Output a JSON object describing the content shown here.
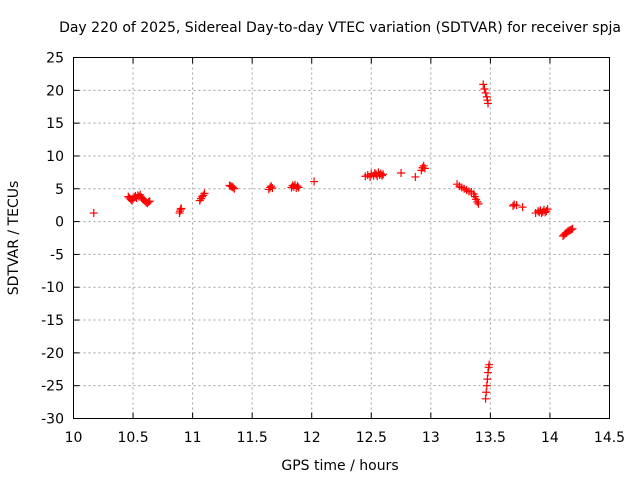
{
  "chart_data": {
    "type": "scatter",
    "title": "Day 220 of 2025, Sidereal Day-to-day VTEC variation (SDTVAR) for receiver spja",
    "xlabel": "GPS time / hours",
    "ylabel": "SDTVAR / TECUs",
    "xlim": [
      10,
      14.5
    ],
    "ylim": [
      -30,
      25
    ],
    "xticks": [
      10,
      10.5,
      11,
      11.5,
      12,
      12.5,
      13,
      13.5,
      14,
      14.5
    ],
    "xtick_labels": [
      "10",
      "10.5",
      "11",
      "11.5",
      "12",
      "12.5",
      "13",
      "13.5",
      "14",
      "14.5"
    ],
    "yticks": [
      25,
      20,
      15,
      10,
      5,
      0,
      -5,
      -10,
      -15,
      -20,
      -25,
      -30
    ],
    "ytick_labels": [
      "25",
      "20",
      "15",
      "10",
      "5",
      "0",
      "-5",
      "-10",
      "-15",
      "-20",
      "-25",
      "-30"
    ],
    "grid": true,
    "marker": "+",
    "color": "#ff0000",
    "series": [
      {
        "name": "SDTVAR",
        "points": [
          [
            10.17,
            1.3
          ],
          [
            10.46,
            3.8
          ],
          [
            10.47,
            3.6
          ],
          [
            10.48,
            3.4
          ],
          [
            10.49,
            3.2
          ],
          [
            10.5,
            3.5
          ],
          [
            10.51,
            3.7
          ],
          [
            10.52,
            3.9
          ],
          [
            10.53,
            3.6
          ],
          [
            10.54,
            4.0
          ],
          [
            10.55,
            3.8
          ],
          [
            10.56,
            4.1
          ],
          [
            10.57,
            3.7
          ],
          [
            10.58,
            3.5
          ],
          [
            10.59,
            3.3
          ],
          [
            10.6,
            3.1
          ],
          [
            10.61,
            2.9
          ],
          [
            10.62,
            2.8
          ],
          [
            10.63,
            3.0
          ],
          [
            10.64,
            3.1
          ],
          [
            10.89,
            1.3
          ],
          [
            10.895,
            1.6
          ],
          [
            10.9,
            1.9
          ],
          [
            10.905,
            2.0
          ],
          [
            11.06,
            3.2
          ],
          [
            11.07,
            3.5
          ],
          [
            11.08,
            3.8
          ],
          [
            11.09,
            4.0
          ],
          [
            11.1,
            4.3
          ],
          [
            11.31,
            5.5
          ],
          [
            11.32,
            5.4
          ],
          [
            11.33,
            5.3
          ],
          [
            11.34,
            5.2
          ],
          [
            11.35,
            5.0
          ],
          [
            11.64,
            4.9
          ],
          [
            11.65,
            5.2
          ],
          [
            11.66,
            5.4
          ],
          [
            11.67,
            5.1
          ],
          [
            11.83,
            5.2
          ],
          [
            11.84,
            5.5
          ],
          [
            11.85,
            5.3
          ],
          [
            11.86,
            5.6
          ],
          [
            11.87,
            5.1
          ],
          [
            11.88,
            5.4
          ],
          [
            11.89,
            5.2
          ],
          [
            12.02,
            6.1
          ],
          [
            12.45,
            6.9
          ],
          [
            12.47,
            7.1
          ],
          [
            12.49,
            6.8
          ],
          [
            12.5,
            7.3
          ],
          [
            12.52,
            7.0
          ],
          [
            12.53,
            7.4
          ],
          [
            12.54,
            7.2
          ],
          [
            12.55,
            6.9
          ],
          [
            12.56,
            7.5
          ],
          [
            12.57,
            7.1
          ],
          [
            12.58,
            7.3
          ],
          [
            12.59,
            7.0
          ],
          [
            12.6,
            7.2
          ],
          [
            12.75,
            7.4
          ],
          [
            12.87,
            6.8
          ],
          [
            12.92,
            7.8
          ],
          [
            12.93,
            8.2
          ],
          [
            12.94,
            8.5
          ],
          [
            12.95,
            8.1
          ],
          [
            13.22,
            5.7
          ],
          [
            13.24,
            5.4
          ],
          [
            13.26,
            5.2
          ],
          [
            13.28,
            5.0
          ],
          [
            13.3,
            4.8
          ],
          [
            13.32,
            4.6
          ],
          [
            13.34,
            4.5
          ],
          [
            13.36,
            4.2
          ],
          [
            13.37,
            3.8
          ],
          [
            13.38,
            3.4
          ],
          [
            13.39,
            3.0
          ],
          [
            13.4,
            2.7
          ],
          [
            13.44,
            20.9
          ],
          [
            13.45,
            20.2
          ],
          [
            13.46,
            19.6
          ],
          [
            13.47,
            19.0
          ],
          [
            13.475,
            18.5
          ],
          [
            13.48,
            18.0
          ],
          [
            13.46,
            -27.0
          ],
          [
            13.465,
            -26.0
          ],
          [
            13.47,
            -25.0
          ],
          [
            13.475,
            -24.0
          ],
          [
            13.48,
            -23.0
          ],
          [
            13.485,
            -22.2
          ],
          [
            13.49,
            -21.8
          ],
          [
            13.69,
            2.4
          ],
          [
            13.7,
            2.6
          ],
          [
            13.72,
            2.5
          ],
          [
            13.77,
            2.2
          ],
          [
            13.88,
            1.3
          ],
          [
            13.9,
            1.6
          ],
          [
            13.91,
            1.4
          ],
          [
            13.92,
            1.7
          ],
          [
            13.93,
            1.3
          ],
          [
            13.94,
            1.5
          ],
          [
            13.95,
            1.8
          ],
          [
            13.96,
            1.4
          ],
          [
            13.97,
            1.6
          ],
          [
            13.98,
            1.9
          ],
          [
            14.11,
            -2.2
          ],
          [
            14.12,
            -2.0
          ],
          [
            14.13,
            -1.8
          ],
          [
            14.14,
            -1.7
          ],
          [
            14.15,
            -1.5
          ],
          [
            14.16,
            -1.4
          ],
          [
            14.17,
            -1.3
          ],
          [
            14.18,
            -1.2
          ],
          [
            14.19,
            -1.1
          ]
        ]
      }
    ]
  }
}
